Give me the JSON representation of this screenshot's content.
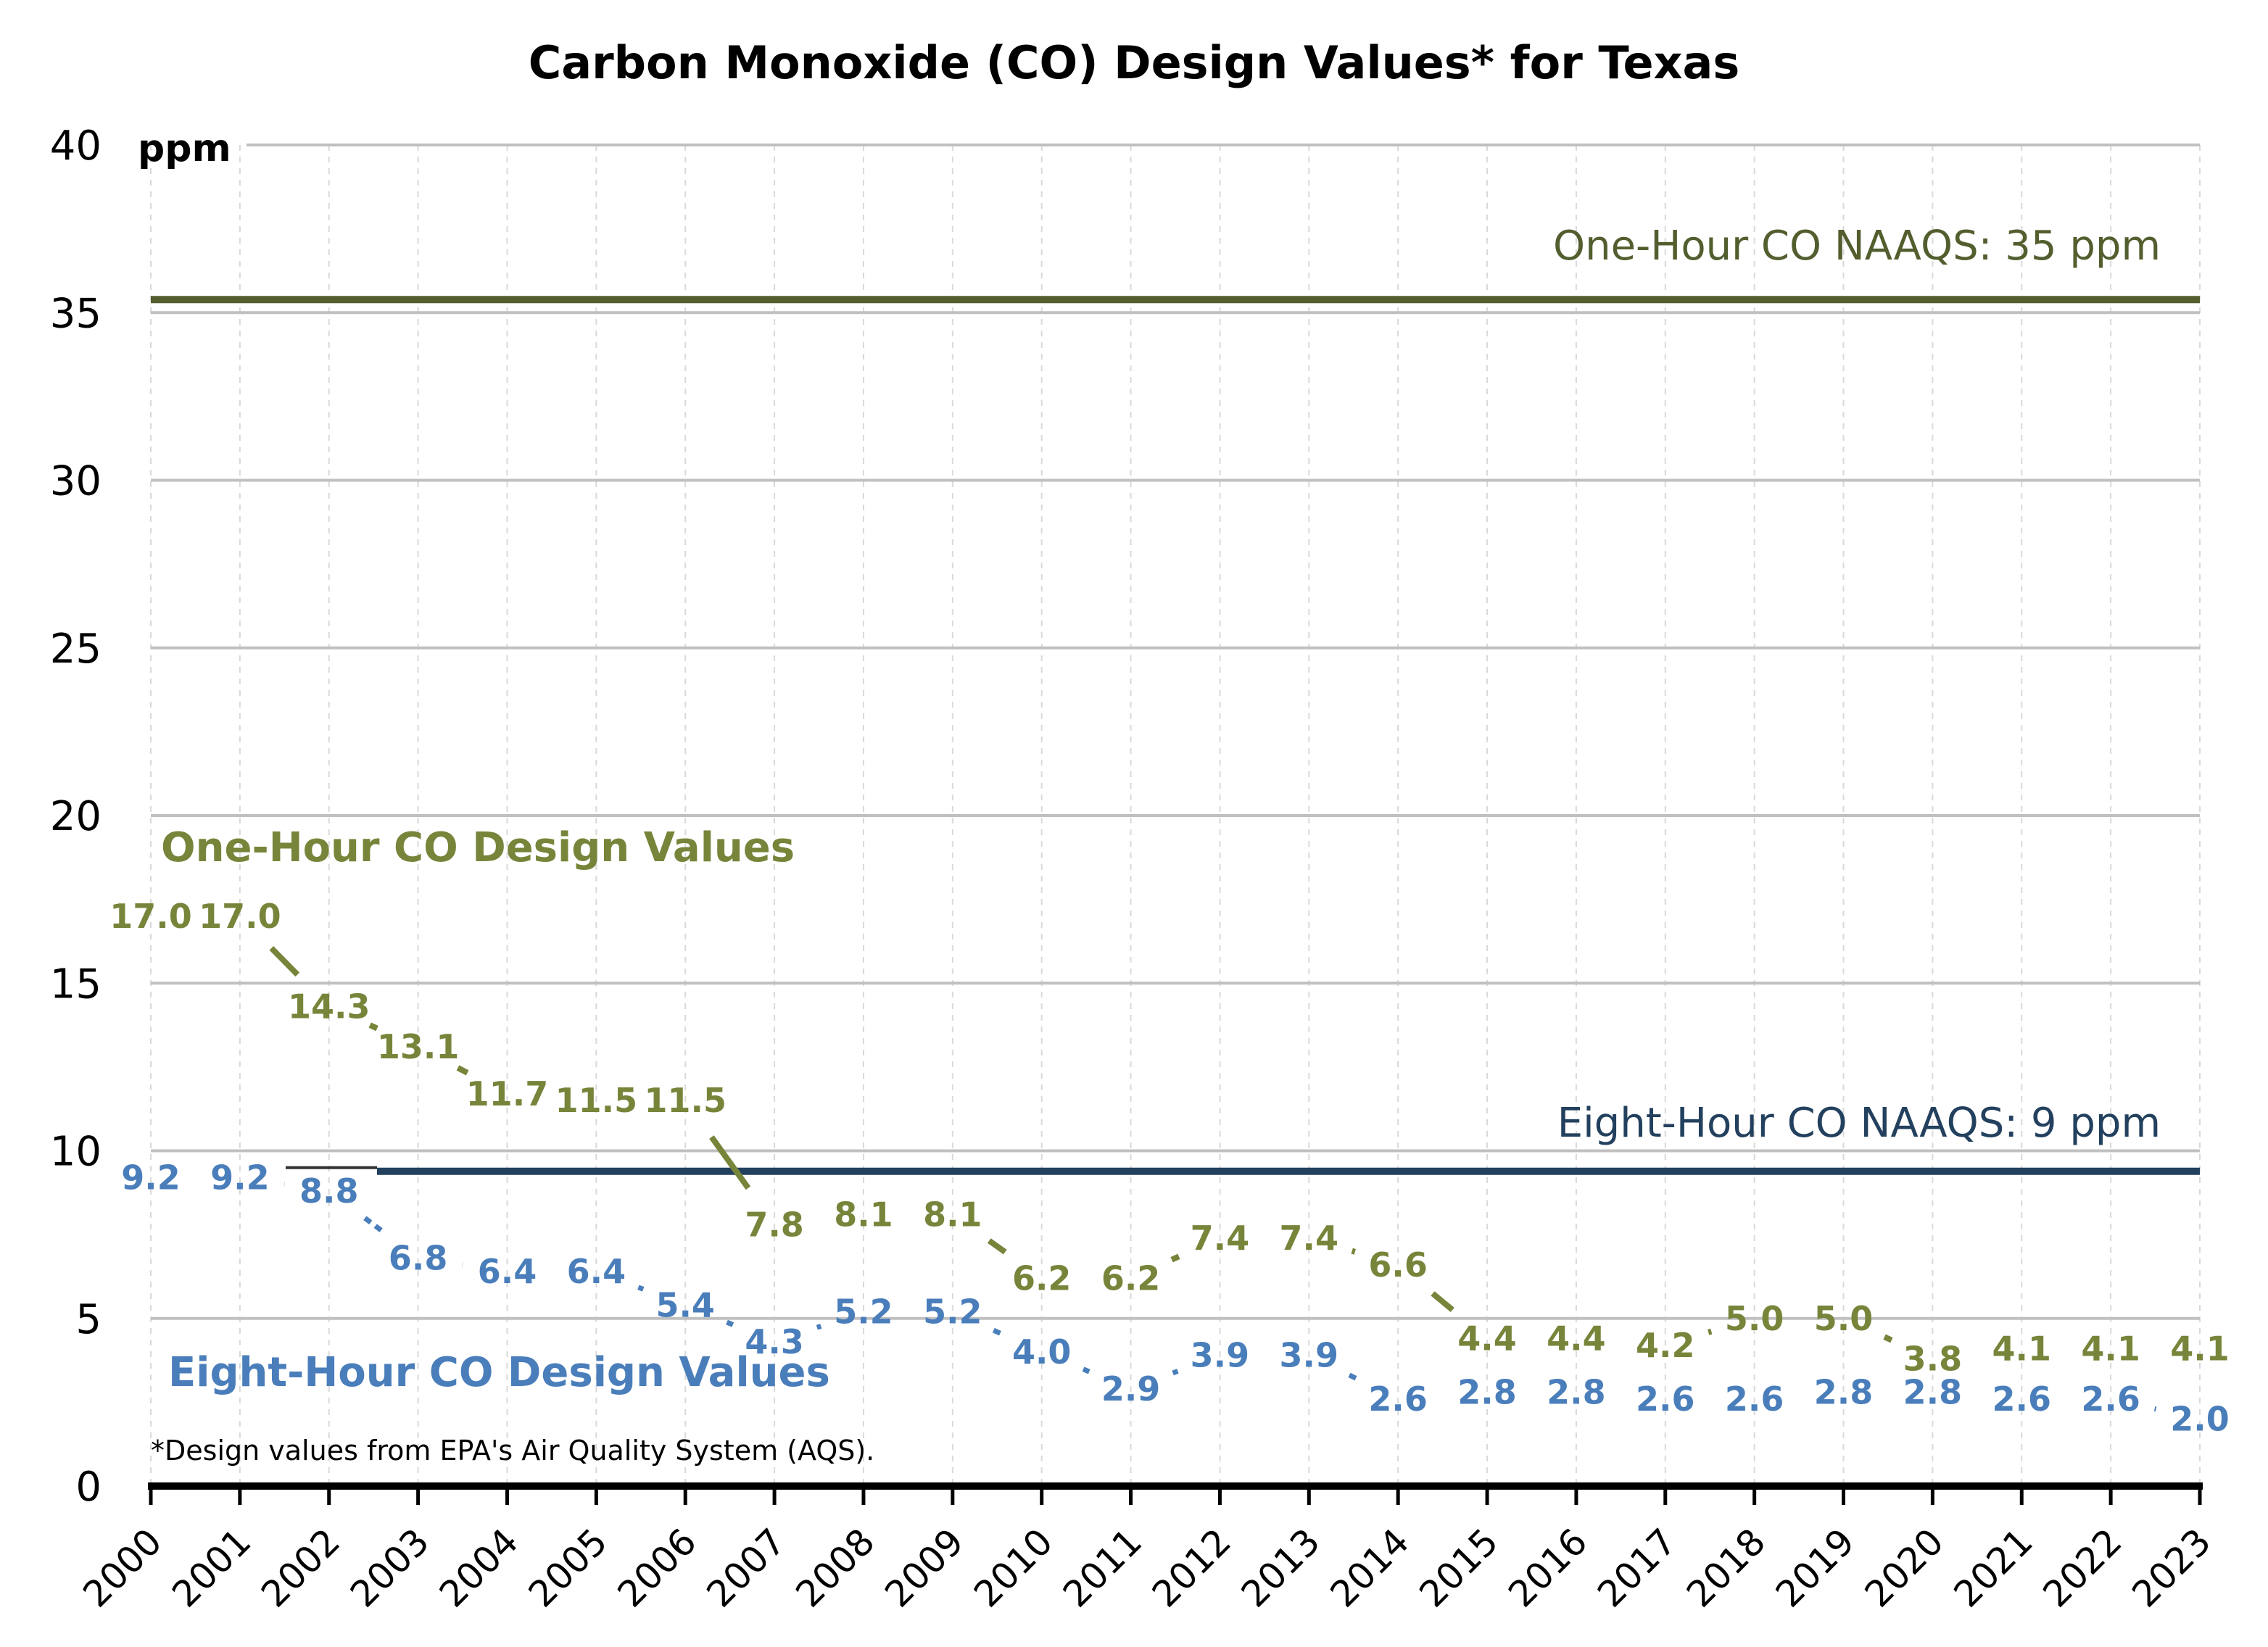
{
  "chart_data": {
    "type": "line",
    "title": "Carbon Monoxide (CO) Design Values* for Texas",
    "xlabel": "",
    "ylabel": "ppm",
    "ylim": [
      0,
      40
    ],
    "yticks": [
      0,
      5,
      10,
      15,
      20,
      25,
      30,
      35,
      40
    ],
    "grid": true,
    "x": [
      "2000",
      "2001",
      "2002",
      "2003",
      "2004",
      "2005",
      "2006",
      "2007",
      "2008",
      "2009",
      "2010",
      "2011",
      "2012",
      "2013",
      "2014",
      "2015",
      "2016",
      "2017",
      "2018",
      "2019",
      "2020",
      "2021",
      "2022",
      "2023"
    ],
    "series": [
      {
        "name": "One-Hour CO Design Values",
        "color": "#76853A",
        "values": [
          17.0,
          17.0,
          14.3,
          13.1,
          11.7,
          11.5,
          11.5,
          7.8,
          8.1,
          8.1,
          6.2,
          6.2,
          7.4,
          7.4,
          6.6,
          4.4,
          4.4,
          4.2,
          5.0,
          5.0,
          3.8,
          4.1,
          4.1,
          4.1
        ],
        "labels": [
          "17.0",
          "17.0",
          "14.3",
          "13.1",
          "11.7",
          "11.5",
          "11.5",
          "7.8",
          "8.1",
          "8.1",
          "6.2",
          "6.2",
          "7.4",
          "7.4",
          "6.6",
          "4.4",
          "4.4",
          "4.2",
          "5.0",
          "5.0",
          "3.8",
          "4.1",
          "4.1",
          "4.1"
        ]
      },
      {
        "name": "Eight-Hour CO Design Values",
        "color": "#4A7EBB",
        "values": [
          9.2,
          9.2,
          8.8,
          6.8,
          6.4,
          6.4,
          5.4,
          4.3,
          5.2,
          5.2,
          4.0,
          2.9,
          3.9,
          3.9,
          2.6,
          2.8,
          2.8,
          2.6,
          2.6,
          2.8,
          2.8,
          2.6,
          2.6,
          2.0
        ],
        "labels": [
          "9.2",
          "9.2",
          "8.8",
          "6.8",
          "6.4",
          "6.4",
          "5.4",
          "4.3",
          "5.2",
          "5.2",
          "4.0",
          "2.9",
          "3.9",
          "3.9",
          "2.6",
          "2.8",
          "2.8",
          "2.6",
          "2.6",
          "2.8",
          "2.8",
          "2.6",
          "2.6",
          "2.0"
        ]
      }
    ],
    "reference_lines": [
      {
        "name": "One-Hour CO NAAQS",
        "value": 35,
        "label": "One-Hour CO NAAQS: 35 ppm",
        "color": "#535E2F"
      },
      {
        "name": "Eight-Hour CO NAAQS",
        "value": 9,
        "label": "Eight-Hour CO NAAQS: 9 ppm",
        "color": "#23415E"
      }
    ],
    "annotations": {
      "one_hour_series_label": "One-Hour CO Design Values",
      "eight_hour_series_label": "Eight-Hour CO Design Values",
      "footnote": "*Design values from EPA's Air Quality System (AQS)."
    },
    "legend": "inline-labels"
  }
}
